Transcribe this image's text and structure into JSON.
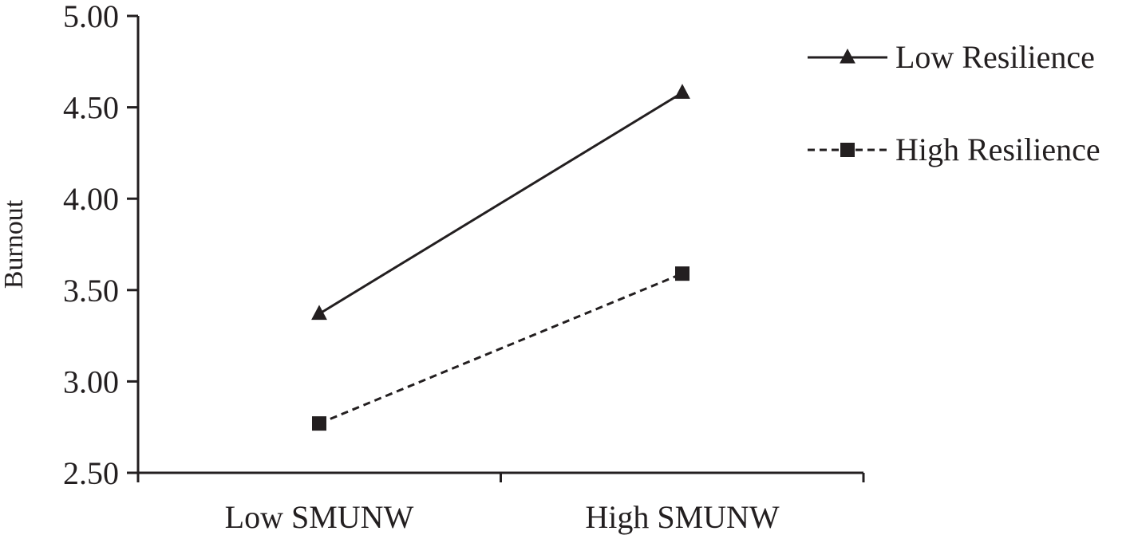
{
  "chart_data": {
    "type": "line",
    "title": "",
    "xlabel": "",
    "ylabel": "Burnout",
    "categories": [
      "Low SMUNW",
      "High SMUNW"
    ],
    "ylim": [
      2.5,
      5.0
    ],
    "yticks": [
      "2.50",
      "3.00",
      "3.50",
      "4.00",
      "4.50",
      "5.00"
    ],
    "grid": false,
    "legend_position": "top-right",
    "series": [
      {
        "name": "Low Resilience",
        "values": [
          3.37,
          4.58
        ],
        "line_style": "solid",
        "marker": "triangle",
        "color": "#231f20"
      },
      {
        "name": "High Resilience",
        "values": [
          2.77,
          3.59
        ],
        "line_style": "dashed",
        "marker": "square",
        "color": "#231f20"
      }
    ]
  }
}
